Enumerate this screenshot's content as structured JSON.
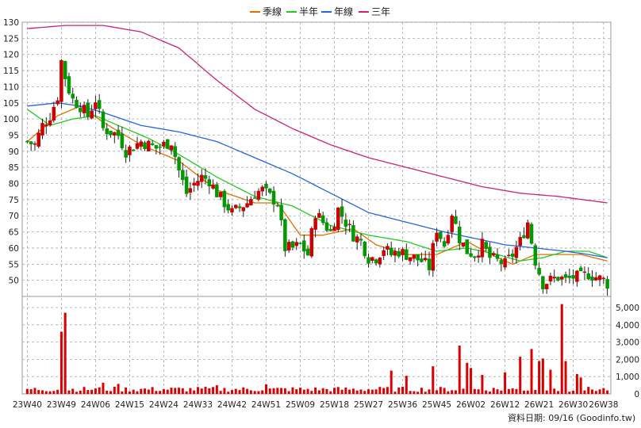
{
  "chart_data": {
    "type": "candlestick",
    "legend": [
      {
        "label": "季線",
        "color": "#e07000"
      },
      {
        "label": "半年",
        "color": "#22cc22"
      },
      {
        "label": "年線",
        "color": "#2266dd"
      },
      {
        "label": "三年",
        "color": "#cc2277"
      }
    ],
    "price_axis": {
      "ylim": [
        45,
        130
      ],
      "ticks": [
        50,
        55,
        60,
        65,
        70,
        75,
        80,
        85,
        90,
        95,
        100,
        105,
        110,
        115,
        120,
        125,
        130
      ]
    },
    "volume_axis": {
      "ylim": [
        0,
        5000
      ],
      "ticks": [
        "0",
        "1,000",
        "2,000",
        "3,000",
        "4,000",
        "5,000"
      ]
    },
    "x_ticks": [
      "23W40",
      "23W49",
      "24W06",
      "24W15",
      "24W24",
      "24W33",
      "24W42",
      "24W51",
      "25W09",
      "25W18",
      "25W27",
      "25W36",
      "25W45",
      "26W02",
      "26W12",
      "26W21",
      "26W30",
      "26W38"
    ],
    "x_tick_week_index": [
      0,
      9,
      18,
      27,
      36,
      45,
      54,
      63,
      72,
      81,
      90,
      99,
      108,
      117,
      126,
      135,
      144,
      152
    ],
    "price_keyframes": [
      [
        0,
        93
      ],
      [
        2,
        92
      ],
      [
        4,
        98
      ],
      [
        6,
        101
      ],
      [
        8,
        107
      ],
      [
        9,
        118
      ],
      [
        10,
        113
      ],
      [
        11,
        109
      ],
      [
        12,
        106
      ],
      [
        14,
        104
      ],
      [
        16,
        101
      ],
      [
        18,
        106
      ],
      [
        20,
        97
      ],
      [
        24,
        95
      ],
      [
        26,
        90
      ],
      [
        30,
        93
      ],
      [
        34,
        91
      ],
      [
        38,
        93
      ],
      [
        40,
        84
      ],
      [
        42,
        77
      ],
      [
        44,
        80
      ],
      [
        46,
        82
      ],
      [
        48,
        81
      ],
      [
        50,
        77
      ],
      [
        54,
        71
      ],
      [
        58,
        74
      ],
      [
        60,
        77
      ],
      [
        62,
        78
      ],
      [
        64,
        76
      ],
      [
        66,
        74
      ],
      [
        68,
        60
      ],
      [
        70,
        60
      ],
      [
        72,
        61
      ],
      [
        74,
        58
      ],
      [
        76,
        71
      ],
      [
        78,
        68
      ],
      [
        80,
        65
      ],
      [
        82,
        72
      ],
      [
        84,
        68
      ],
      [
        86,
        64
      ],
      [
        88,
        62
      ],
      [
        90,
        57
      ],
      [
        92,
        57
      ],
      [
        94,
        60
      ],
      [
        96,
        58
      ],
      [
        98,
        59
      ],
      [
        100,
        58
      ],
      [
        102,
        57
      ],
      [
        104,
        56
      ],
      [
        106,
        54
      ],
      [
        108,
        66
      ],
      [
        110,
        61
      ],
      [
        112,
        71
      ],
      [
        114,
        63
      ],
      [
        116,
        59
      ],
      [
        118,
        58
      ],
      [
        120,
        61
      ],
      [
        122,
        57
      ],
      [
        124,
        56
      ],
      [
        126,
        55
      ],
      [
        128,
        58
      ],
      [
        130,
        62
      ],
      [
        132,
        68
      ],
      [
        134,
        56
      ],
      [
        136,
        49
      ],
      [
        138,
        50
      ],
      [
        140,
        51
      ],
      [
        142,
        50
      ],
      [
        144,
        51
      ],
      [
        146,
        51
      ],
      [
        148,
        52
      ],
      [
        150,
        51
      ],
      [
        152,
        50
      ],
      [
        153,
        49
      ]
    ],
    "volume_peaks": {
      "9": 3600,
      "10": 4700,
      "20": 650,
      "24": 580,
      "50": 500,
      "63": 550,
      "96": 1350,
      "100": 1050,
      "107": 1600,
      "114": 2800,
      "116": 1800,
      "117": 1500,
      "120": 1100,
      "126": 1250,
      "130": 2150,
      "133": 2600,
      "135": 1900,
      "136": 2050,
      "138": 1400,
      "141": 5200,
      "142": 1900,
      "145": 1150,
      "146": 950
    },
    "ma_keyframes": {
      "季線": [
        [
          0,
          93
        ],
        [
          8,
          101
        ],
        [
          14,
          104
        ],
        [
          20,
          99
        ],
        [
          30,
          92
        ],
        [
          40,
          87
        ],
        [
          50,
          78
        ],
        [
          60,
          74
        ],
        [
          66,
          74
        ],
        [
          72,
          64
        ],
        [
          78,
          64
        ],
        [
          86,
          66
        ],
        [
          92,
          61
        ],
        [
          100,
          58
        ],
        [
          108,
          58
        ],
        [
          116,
          62
        ],
        [
          124,
          57
        ],
        [
          128,
          55
        ],
        [
          134,
          58
        ],
        [
          140,
          58
        ],
        [
          146,
          58
        ],
        [
          153,
          56
        ]
      ],
      "半年": [
        [
          0,
          103
        ],
        [
          6,
          98
        ],
        [
          12,
          100
        ],
        [
          18,
          101
        ],
        [
          24,
          98
        ],
        [
          32,
          94
        ],
        [
          40,
          89
        ],
        [
          50,
          82
        ],
        [
          60,
          76
        ],
        [
          70,
          73
        ],
        [
          80,
          67
        ],
        [
          90,
          64
        ],
        [
          100,
          62
        ],
        [
          108,
          59
        ],
        [
          116,
          60
        ],
        [
          124,
          58
        ],
        [
          130,
          56
        ],
        [
          136,
          57
        ],
        [
          142,
          59
        ],
        [
          148,
          59
        ],
        [
          153,
          57
        ]
      ],
      "年線": [
        [
          0,
          104
        ],
        [
          8,
          105
        ],
        [
          14,
          104
        ],
        [
          20,
          102
        ],
        [
          30,
          98
        ],
        [
          40,
          96
        ],
        [
          50,
          93
        ],
        [
          60,
          88
        ],
        [
          70,
          83
        ],
        [
          80,
          77
        ],
        [
          90,
          71
        ],
        [
          100,
          68
        ],
        [
          110,
          65
        ],
        [
          118,
          63
        ],
        [
          126,
          61
        ],
        [
          134,
          60
        ],
        [
          142,
          59
        ],
        [
          148,
          58
        ],
        [
          153,
          57
        ]
      ],
      "三年": [
        [
          0,
          128
        ],
        [
          10,
          129
        ],
        [
          20,
          129
        ],
        [
          30,
          127
        ],
        [
          40,
          122
        ],
        [
          50,
          112
        ],
        [
          60,
          103
        ],
        [
          70,
          97
        ],
        [
          80,
          92
        ],
        [
          90,
          88
        ],
        [
          100,
          85
        ],
        [
          110,
          82
        ],
        [
          120,
          79
        ],
        [
          130,
          77
        ],
        [
          140,
          76
        ],
        [
          153,
          74
        ]
      ]
    }
  },
  "footer": "資料日期: 09/16  (Goodinfo.tw)"
}
